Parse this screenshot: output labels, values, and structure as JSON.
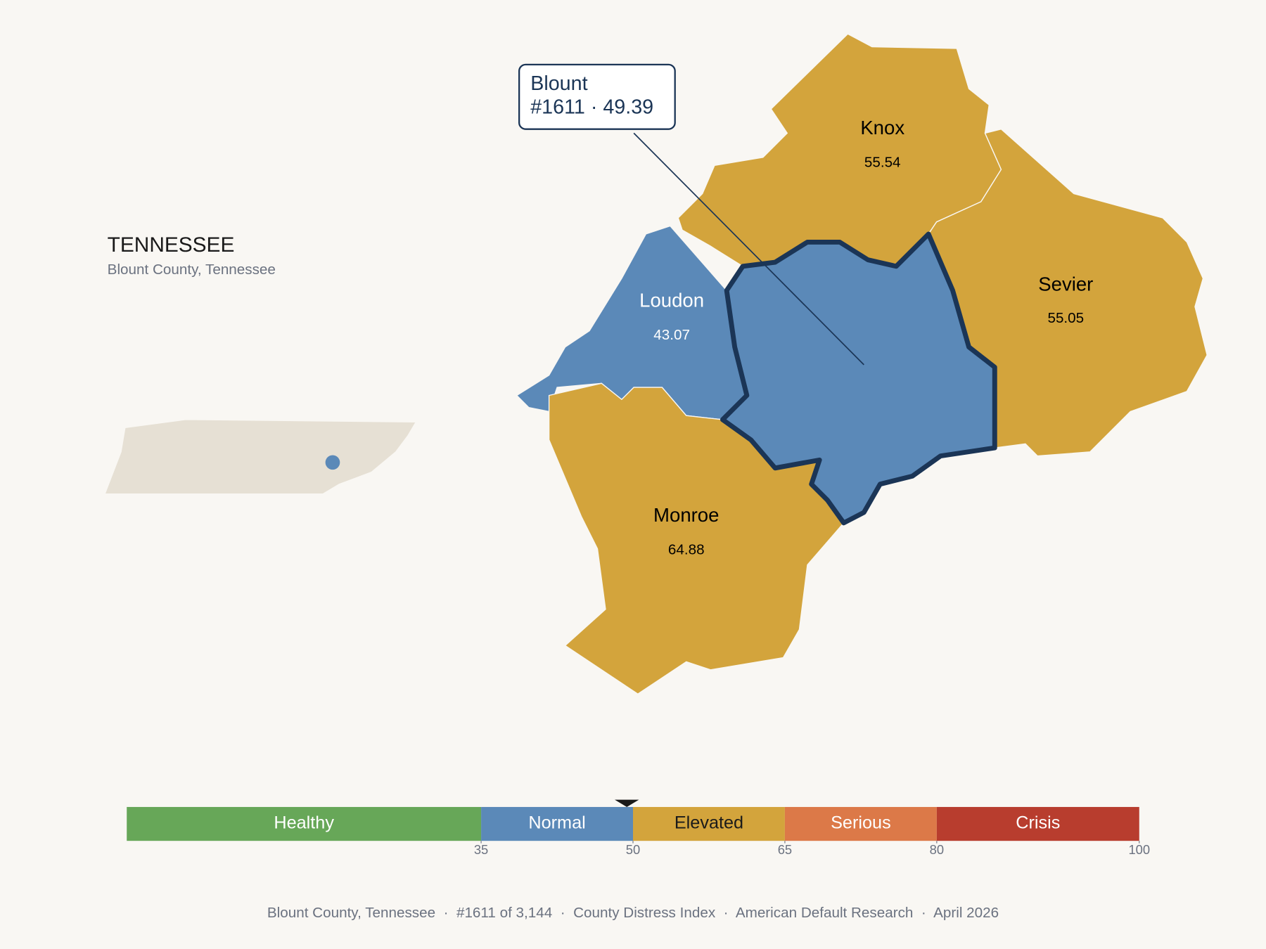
{
  "header": {
    "title": "TENNESSEE",
    "subtitle": "Blount County, Tennessee"
  },
  "tooltip": {
    "title": "Blount",
    "line": "#1611 · 49.39"
  },
  "counties": [
    {
      "name": "Blount",
      "score": 49.39,
      "selected": true
    },
    {
      "name": "Knox",
      "score": 55.54
    },
    {
      "name": "Sevier",
      "score": 55.05
    },
    {
      "name": "Loudon",
      "score": 43.07
    },
    {
      "name": "Monroe",
      "score": 64.88
    }
  ],
  "scale": {
    "min": 0,
    "max": 100,
    "ticks": [
      35,
      50,
      65,
      80,
      100
    ],
    "segments": [
      {
        "label": "Healthy",
        "from": 0,
        "to": 35,
        "color": "#67a758",
        "text_color": "#ffffff"
      },
      {
        "label": "Normal",
        "from": 35,
        "to": 50,
        "color": "#5b89b8",
        "text_color": "#ffffff"
      },
      {
        "label": "Elevated",
        "from": 50,
        "to": 65,
        "color": "#d3a43c",
        "text_color": "#1a1a1a"
      },
      {
        "label": "Serious",
        "from": 65,
        "to": 80,
        "color": "#dc7948",
        "text_color": "#ffffff"
      },
      {
        "label": "Crisis",
        "from": 80,
        "to": 100,
        "color": "#b83d2e",
        "text_color": "#ffffff"
      }
    ]
  },
  "footer": "Blount County, Tennessee  ·  #1611 of 3,144  ·  County Distress Index  ·  American Default Research  ·  April 2026"
}
